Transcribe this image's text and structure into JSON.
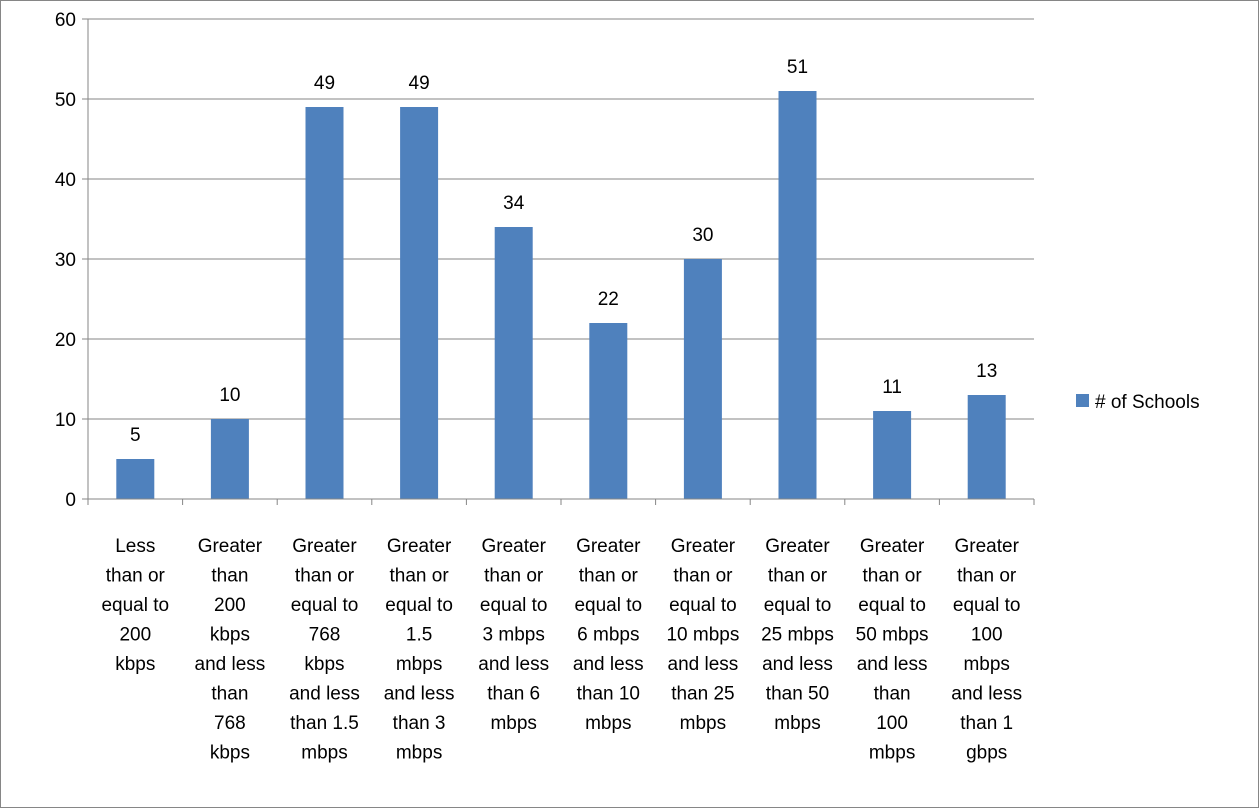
{
  "chart_data": {
    "type": "bar",
    "title": "",
    "xlabel": "",
    "ylabel": "",
    "ylim": [
      0,
      60
    ],
    "y_ticks": [
      0,
      10,
      20,
      30,
      40,
      50,
      60
    ],
    "grid": true,
    "legend_position": "right",
    "bar_color": "#4f81bd",
    "categories": [
      [
        "Less",
        "than or",
        "equal to",
        "200",
        "kbps"
      ],
      [
        "Greater",
        "than",
        "200",
        "kbps",
        "and less",
        "than",
        "768",
        "kbps"
      ],
      [
        "Greater",
        "than or",
        "equal to",
        "768",
        "kbps",
        "and less",
        "than 1.5",
        "mbps"
      ],
      [
        "Greater",
        "than or",
        "equal to",
        "1.5",
        "mbps",
        "and less",
        "than 3",
        "mbps"
      ],
      [
        "Greater",
        "than or",
        "equal to",
        "3 mbps",
        "and less",
        "than 6",
        "mbps"
      ],
      [
        "Greater",
        "than or",
        "equal to",
        "6 mbps",
        "and less",
        "than 10",
        "mbps"
      ],
      [
        "Greater",
        "than or",
        "equal to",
        "10 mbps",
        "and less",
        "than 25",
        "mbps"
      ],
      [
        "Greater",
        "than or",
        "equal to",
        "25 mbps",
        "and less",
        "than 50",
        "mbps"
      ],
      [
        "Greater",
        "than or",
        "equal to",
        "50 mbps",
        "and less",
        "than",
        "100",
        "mbps"
      ],
      [
        "Greater",
        "than or",
        "equal to",
        "100",
        "mbps",
        "and less",
        "than 1",
        "gbps"
      ]
    ],
    "series": [
      {
        "name": "# of Schools",
        "values": [
          5,
          10,
          49,
          49,
          34,
          22,
          30,
          51,
          11,
          13
        ]
      }
    ]
  }
}
